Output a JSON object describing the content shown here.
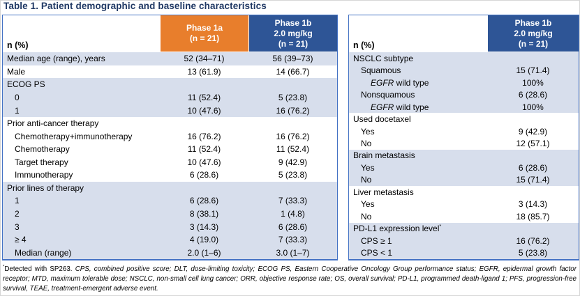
{
  "title": "Table 1. Patient demographic and baseline characteristics",
  "colors": {
    "title_navy": "#1F3864",
    "header_orange": "#E87E2C",
    "header_blue": "#2E5596",
    "shaded_row": "#D7DEEC",
    "table_border": "#4472C4"
  },
  "left_table": {
    "header": {
      "corner": "n (%)",
      "cols": [
        {
          "lines": "Phase 1a\n(n = 21)",
          "bg": "orange"
        },
        {
          "lines": "Phase 1b\n2.0 mg/kg\n(n = 21)",
          "bg": "blue"
        }
      ]
    },
    "rows": [
      {
        "parts": [
          {
            "t": "Median age (range), years"
          }
        ],
        "indent": 0,
        "shade": true,
        "values": [
          "52 (34–71)",
          "56 (39–73)"
        ]
      },
      {
        "parts": [
          {
            "t": "Male"
          }
        ],
        "indent": 0,
        "shade": false,
        "values": [
          "13 (61.9)",
          "14 (66.7)"
        ]
      },
      {
        "parts": [
          {
            "t": "ECOG PS"
          }
        ],
        "indent": 0,
        "shade": true,
        "values": [
          "",
          ""
        ]
      },
      {
        "parts": [
          {
            "t": "0"
          }
        ],
        "indent": 1,
        "shade": true,
        "values": [
          "11 (52.4)",
          "5 (23.8)"
        ]
      },
      {
        "parts": [
          {
            "t": "1"
          }
        ],
        "indent": 1,
        "shade": true,
        "values": [
          "10 (47.6)",
          "16 (76.2)"
        ]
      },
      {
        "parts": [
          {
            "t": "Prior anti-cancer therapy"
          }
        ],
        "indent": 0,
        "shade": false,
        "values": [
          "",
          ""
        ]
      },
      {
        "parts": [
          {
            "t": "Chemotherapy+immunotherapy"
          }
        ],
        "indent": 1,
        "shade": false,
        "values": [
          "16 (76.2)",
          "16 (76.2)"
        ]
      },
      {
        "parts": [
          {
            "t": "Chemotherapy"
          }
        ],
        "indent": 1,
        "shade": false,
        "values": [
          "11 (52.4)",
          "11 (52.4)"
        ]
      },
      {
        "parts": [
          {
            "t": "Target therapy"
          }
        ],
        "indent": 1,
        "shade": false,
        "values": [
          "10 (47.6)",
          "9 (42.9)"
        ]
      },
      {
        "parts": [
          {
            "t": "Immunotherapy"
          }
        ],
        "indent": 1,
        "shade": false,
        "values": [
          "6 (28.6)",
          "5 (23.8)"
        ]
      },
      {
        "parts": [
          {
            "t": "Prior lines of therapy"
          }
        ],
        "indent": 0,
        "shade": true,
        "values": [
          "",
          ""
        ]
      },
      {
        "parts": [
          {
            "t": "1"
          }
        ],
        "indent": 1,
        "shade": true,
        "values": [
          "6 (28.6)",
          "7 (33.3)"
        ]
      },
      {
        "parts": [
          {
            "t": "2"
          }
        ],
        "indent": 1,
        "shade": true,
        "values": [
          "8 (38.1)",
          "1 (4.8)"
        ]
      },
      {
        "parts": [
          {
            "t": "3"
          }
        ],
        "indent": 1,
        "shade": true,
        "values": [
          "3 (14.3)",
          "6 (28.6)"
        ]
      },
      {
        "parts": [
          {
            "t": "≥ 4"
          }
        ],
        "indent": 1,
        "shade": true,
        "values": [
          "4 (19.0)",
          "7 (33.3)"
        ]
      },
      {
        "parts": [
          {
            "t": "Median (range)"
          }
        ],
        "indent": 1,
        "shade": true,
        "values": [
          "2.0 (1–6)",
          "3.0 (1–7)"
        ]
      }
    ]
  },
  "right_table": {
    "header": {
      "corner": "n (%)",
      "cols": [
        {
          "lines": "Phase 1b\n2.0 mg/kg\n(n = 21)",
          "bg": "blue"
        }
      ]
    },
    "rows": [
      {
        "parts": [
          {
            "t": "NSCLC subtype"
          }
        ],
        "indent": 0,
        "shade": true,
        "values": [
          ""
        ]
      },
      {
        "parts": [
          {
            "t": "Squamous"
          }
        ],
        "indent": 1,
        "shade": true,
        "values": [
          "15 (71.4)"
        ]
      },
      {
        "parts": [
          {
            "t": "EGFR",
            "i": true
          },
          {
            "t": " wild type"
          }
        ],
        "indent": 2,
        "shade": true,
        "values": [
          "100%"
        ]
      },
      {
        "parts": [
          {
            "t": "Nonsquamous"
          }
        ],
        "indent": 1,
        "shade": true,
        "values": [
          "6 (28.6)"
        ]
      },
      {
        "parts": [
          {
            "t": "EGFR",
            "i": true
          },
          {
            "t": " wild type"
          }
        ],
        "indent": 2,
        "shade": true,
        "values": [
          "100%"
        ]
      },
      {
        "parts": [
          {
            "t": "Used docetaxel"
          }
        ],
        "indent": 0,
        "shade": false,
        "values": [
          ""
        ]
      },
      {
        "parts": [
          {
            "t": "Yes"
          }
        ],
        "indent": 1,
        "shade": false,
        "values": [
          "9 (42.9)"
        ]
      },
      {
        "parts": [
          {
            "t": "No"
          }
        ],
        "indent": 1,
        "shade": false,
        "values": [
          "12 (57.1)"
        ]
      },
      {
        "parts": [
          {
            "t": "Brain metastasis"
          }
        ],
        "indent": 0,
        "shade": true,
        "values": [
          ""
        ]
      },
      {
        "parts": [
          {
            "t": "Yes"
          }
        ],
        "indent": 1,
        "shade": true,
        "values": [
          "6 (28.6)"
        ]
      },
      {
        "parts": [
          {
            "t": "No"
          }
        ],
        "indent": 1,
        "shade": true,
        "values": [
          "15 (71.4)"
        ]
      },
      {
        "parts": [
          {
            "t": "Liver metastasis"
          }
        ],
        "indent": 0,
        "shade": false,
        "values": [
          ""
        ]
      },
      {
        "parts": [
          {
            "t": "Yes"
          }
        ],
        "indent": 1,
        "shade": false,
        "values": [
          "3 (14.3)"
        ]
      },
      {
        "parts": [
          {
            "t": "No"
          }
        ],
        "indent": 1,
        "shade": false,
        "values": [
          "18 (85.7)"
        ]
      },
      {
        "parts": [
          {
            "t": "PD-L1 expression level"
          },
          {
            "t": "*",
            "sup": true
          }
        ],
        "indent": 0,
        "shade": true,
        "values": [
          ""
        ]
      },
      {
        "parts": [
          {
            "t": "CPS ≥ 1"
          }
        ],
        "indent": 1,
        "shade": true,
        "values": [
          "16 (76.2)"
        ]
      },
      {
        "parts": [
          {
            "t": "CPS < 1"
          }
        ],
        "indent": 1,
        "shade": true,
        "values": [
          "5 (23.8)"
        ]
      }
    ]
  },
  "footnote": {
    "parts": [
      {
        "t": "*",
        "sup": true
      },
      {
        "t": "Detected with SP263. "
      },
      {
        "t": "CPS, combined positive score; DLT, dose-limiting toxicity; ECOG PS, Eastern Cooperative Oncology Group performance status; EGFR, epidermal growth factor receptor; MTD, maximum tolerable dose; NSCLC, non-small cell lung cancer; ORR, objective response rate; OS, overall survival; PD-L1, programmed death-ligand 1; PFS, progression-free survival, TEAE, treatment-emergent adverse event.",
        "i": true
      }
    ]
  }
}
